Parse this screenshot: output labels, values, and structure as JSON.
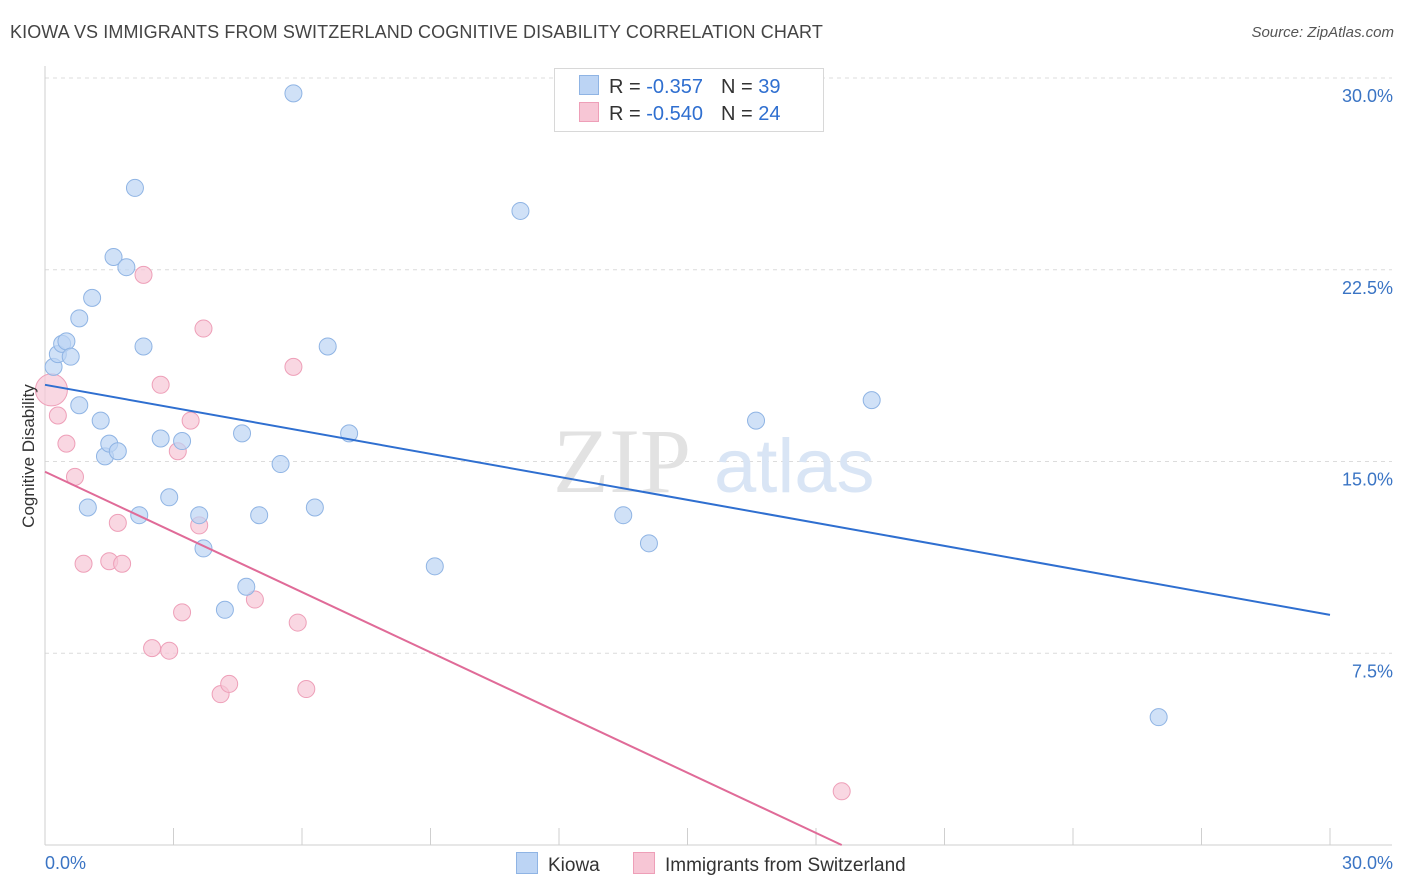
{
  "title": "KIOWA VS IMMIGRANTS FROM SWITZERLAND COGNITIVE DISABILITY CORRELATION CHART",
  "source": "Source: ZipAtlas.com",
  "watermark": {
    "zip": "ZIP",
    "atlas": "atlas"
  },
  "legend": {
    "r_label": "R =",
    "n_label": "N =",
    "rows": [
      {
        "r": "-0.357",
        "n": "39"
      },
      {
        "r": "-0.540",
        "n": "24"
      }
    ]
  },
  "colors": {
    "blue_fill": "#bcd4f4",
    "blue_stroke": "#8fb4e4",
    "blue_line": "#2f6fd0",
    "pink_fill": "#f7c6d5",
    "pink_stroke": "#ee9fb8",
    "pink_line": "#e06b98"
  },
  "chart_data": {
    "type": "scatter",
    "title": "KIOWA VS IMMIGRANTS FROM SWITZERLAND COGNITIVE DISABILITY CORRELATION CHART",
    "xlabel": "",
    "ylabel": "Cognitive Disability",
    "xlim": [
      0,
      30
    ],
    "ylim": [
      0,
      30
    ],
    "x_tick_labels": [
      "0.0%",
      "30.0%"
    ],
    "y_ticks": [
      7.5,
      15.0,
      22.5,
      30.0
    ],
    "y_tick_labels": [
      "7.5%",
      "15.0%",
      "22.5%",
      "30.0%"
    ],
    "series": [
      {
        "name": "Kiowa",
        "color": "#bcd4f4",
        "points": [
          [
            0.2,
            18.7
          ],
          [
            0.3,
            19.2
          ],
          [
            0.4,
            19.6
          ],
          [
            0.5,
            19.7
          ],
          [
            0.6,
            19.1
          ],
          [
            0.8,
            20.6
          ],
          [
            0.8,
            17.2
          ],
          [
            1.0,
            13.2
          ],
          [
            1.1,
            21.4
          ],
          [
            1.3,
            16.6
          ],
          [
            1.4,
            15.2
          ],
          [
            1.5,
            15.7
          ],
          [
            1.6,
            23.0
          ],
          [
            1.7,
            15.4
          ],
          [
            1.9,
            22.6
          ],
          [
            2.1,
            25.7
          ],
          [
            2.2,
            12.9
          ],
          [
            2.3,
            19.5
          ],
          [
            2.7,
            15.9
          ],
          [
            2.9,
            13.6
          ],
          [
            3.2,
            15.8
          ],
          [
            3.6,
            12.9
          ],
          [
            3.7,
            11.6
          ],
          [
            4.2,
            9.2
          ],
          [
            4.6,
            16.1
          ],
          [
            4.7,
            10.1
          ],
          [
            5.0,
            12.9
          ],
          [
            5.5,
            14.9
          ],
          [
            5.8,
            29.4
          ],
          [
            6.3,
            13.2
          ],
          [
            6.6,
            19.5
          ],
          [
            7.1,
            16.1
          ],
          [
            9.1,
            10.9
          ],
          [
            11.1,
            24.8
          ],
          [
            13.5,
            12.9
          ],
          [
            14.1,
            11.8
          ],
          [
            16.6,
            16.6
          ],
          [
            19.3,
            17.4
          ],
          [
            26.0,
            5.0
          ]
        ],
        "trendline": {
          "x": [
            0,
            30
          ],
          "y": [
            18.0,
            9.0
          ]
        }
      },
      {
        "name": "Immigrants from Switzerland",
        "color": "#f7c6d5",
        "points": [
          [
            0.15,
            17.8
          ],
          [
            0.3,
            16.8
          ],
          [
            0.5,
            15.7
          ],
          [
            0.7,
            14.4
          ],
          [
            0.9,
            11.0
          ],
          [
            1.5,
            11.1
          ],
          [
            1.7,
            12.6
          ],
          [
            1.8,
            11.0
          ],
          [
            2.3,
            22.3
          ],
          [
            2.5,
            7.7
          ],
          [
            2.7,
            18.0
          ],
          [
            2.9,
            7.6
          ],
          [
            3.1,
            15.4
          ],
          [
            3.2,
            9.1
          ],
          [
            3.4,
            16.6
          ],
          [
            3.6,
            12.5
          ],
          [
            3.7,
            20.2
          ],
          [
            4.1,
            5.9
          ],
          [
            4.3,
            6.3
          ],
          [
            4.9,
            9.6
          ],
          [
            5.8,
            18.7
          ],
          [
            5.9,
            8.7
          ],
          [
            6.1,
            6.1
          ],
          [
            18.6,
            2.1
          ]
        ],
        "trendline": {
          "x": [
            0,
            18.6
          ],
          "y": [
            14.6,
            0
          ]
        }
      }
    ]
  },
  "bottom_legend": [
    {
      "label": "Kiowa"
    },
    {
      "label": "Immigrants from Switzerland"
    }
  ]
}
